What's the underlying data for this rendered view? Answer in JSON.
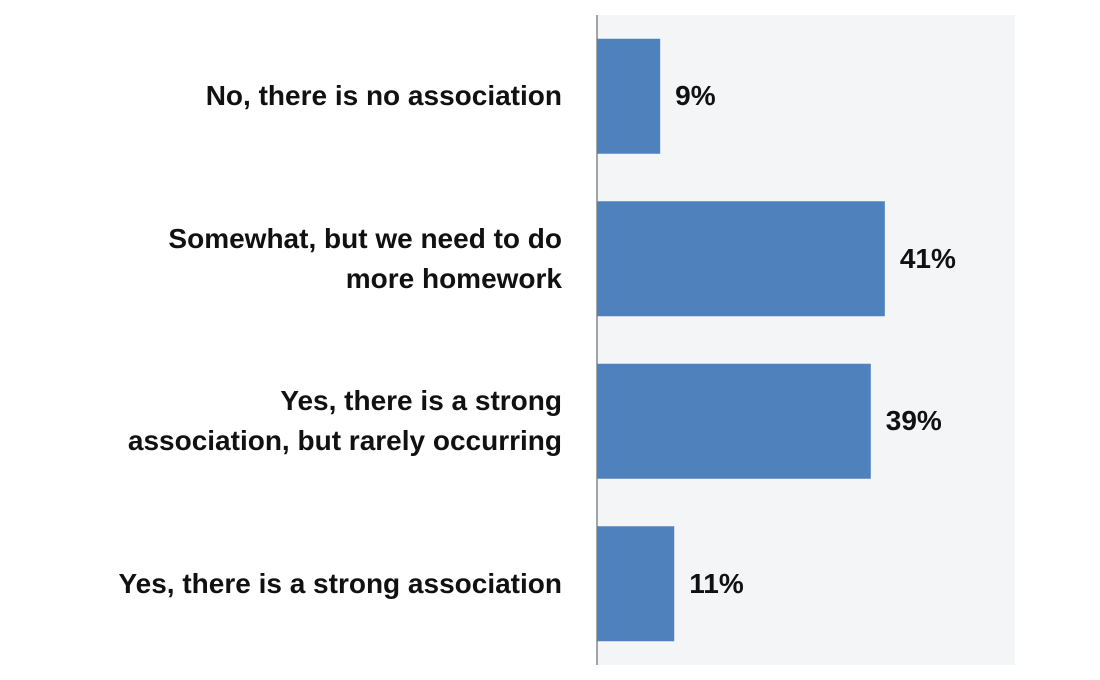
{
  "chart_data": {
    "type": "hbar",
    "categories": [
      "No, there is no association",
      "Somewhat, but we need to do\nmore homework",
      "Yes, there is a strong\nassociation, but rarely occurring",
      "Yes, there is a strong association"
    ],
    "values": [
      9,
      41,
      39,
      11
    ],
    "value_labels": [
      "9%",
      "41%",
      "39%",
      "11%"
    ],
    "color": "#4f81bd"
  }
}
